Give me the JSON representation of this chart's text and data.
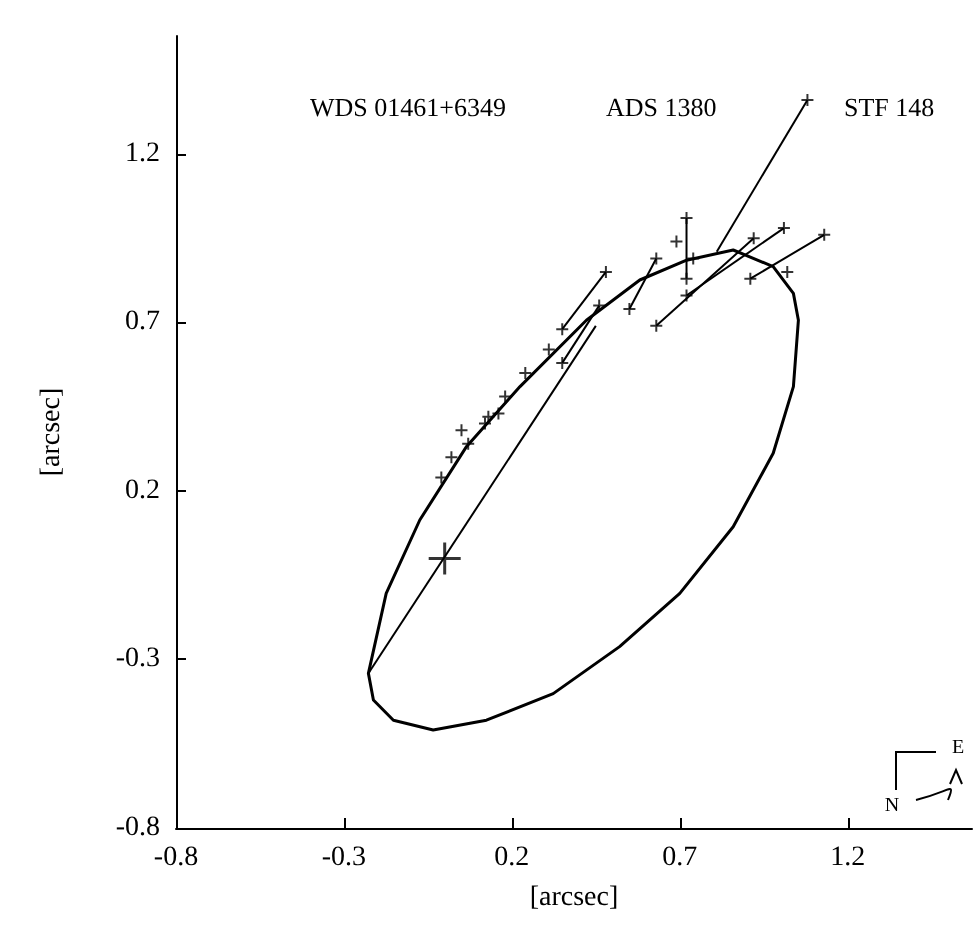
{
  "chart_data": {
    "type": "line",
    "xlabel": "[arcsec]",
    "ylabel": "[arcsec]",
    "annotations": [
      "WDS 01461+6349",
      "ADS 1380",
      "STF 148",
      "N",
      "E"
    ],
    "xlim": [
      -0.8,
      1.57
    ],
    "ylim": [
      -0.8,
      1.55
    ],
    "xticks": [
      -0.8,
      -0.3,
      0.2,
      0.7,
      1.2
    ],
    "yticks": [
      -0.8,
      -0.3,
      0.2,
      0.7,
      1.2
    ],
    "grid": false,
    "series": [
      {
        "color": "#000000",
        "marker": "none",
        "x": [
          -0.227,
          0.45
        ],
        "values": [
          -0.341,
          0.69
        ]
      },
      {
        "color": "#000000",
        "marker": "none",
        "x": [
          1.08,
          0.81
        ],
        "values": [
          1.36,
          0.91
        ]
      },
      {
        "color": "#000000",
        "marker": "none",
        "x": [
          0.72,
          0.72
        ],
        "values": [
          1.01,
          0.83
        ]
      },
      {
        "color": "#000000",
        "marker": "none",
        "x": [
          1.13,
          0.91
        ],
        "values": [
          0.96,
          0.83
        ]
      },
      {
        "color": "#000000",
        "marker": "none",
        "x": [
          1.01,
          0.72
        ],
        "values": [
          0.98,
          0.78
        ]
      },
      {
        "color": "#000000",
        "marker": "none",
        "x": [
          0.63,
          0.92
        ],
        "values": [
          0.69,
          0.95
        ]
      },
      {
        "color": "#000000",
        "marker": "none",
        "x": [
          0.63,
          0.55
        ],
        "values": [
          0.89,
          0.74
        ]
      },
      {
        "color": "#000000",
        "marker": "none",
        "x": [
          0.48,
          0.35
        ],
        "values": [
          0.85,
          0.68
        ]
      },
      {
        "color": "#000000",
        "marker": "none",
        "x": [
          0.35,
          0.46
        ],
        "values": [
          0.58,
          0.75
        ]
      },
      {
        "type": "scatter",
        "color": "#000000",
        "marker": "cross",
        "x": [
          1.08,
          0.72,
          0.69,
          0.72,
          0.74,
          1.13,
          0.91,
          1.01,
          0.72,
          0.63,
          0.92,
          1.02,
          0.63,
          0.55,
          0.48,
          0.35,
          0.35,
          0.46,
          0.31,
          0.24,
          0.18,
          0.16,
          0.13,
          0.12,
          0.07,
          0.05,
          0.02,
          -0.01
        ],
        "values": [
          1.36,
          1.01,
          0.94,
          0.83,
          0.89,
          0.96,
          0.83,
          0.98,
          0.78,
          0.69,
          0.95,
          0.85,
          0.89,
          0.74,
          0.85,
          0.68,
          0.58,
          0.75,
          0.62,
          0.55,
          0.48,
          0.43,
          0.42,
          0.4,
          0.34,
          0.38,
          0.3,
          0.24
        ]
      },
      {
        "type": "scatter",
        "color": "#000000",
        "marker": "cross",
        "x": [
          0
        ],
        "values": [
          0
        ]
      }
    ]
  }
}
